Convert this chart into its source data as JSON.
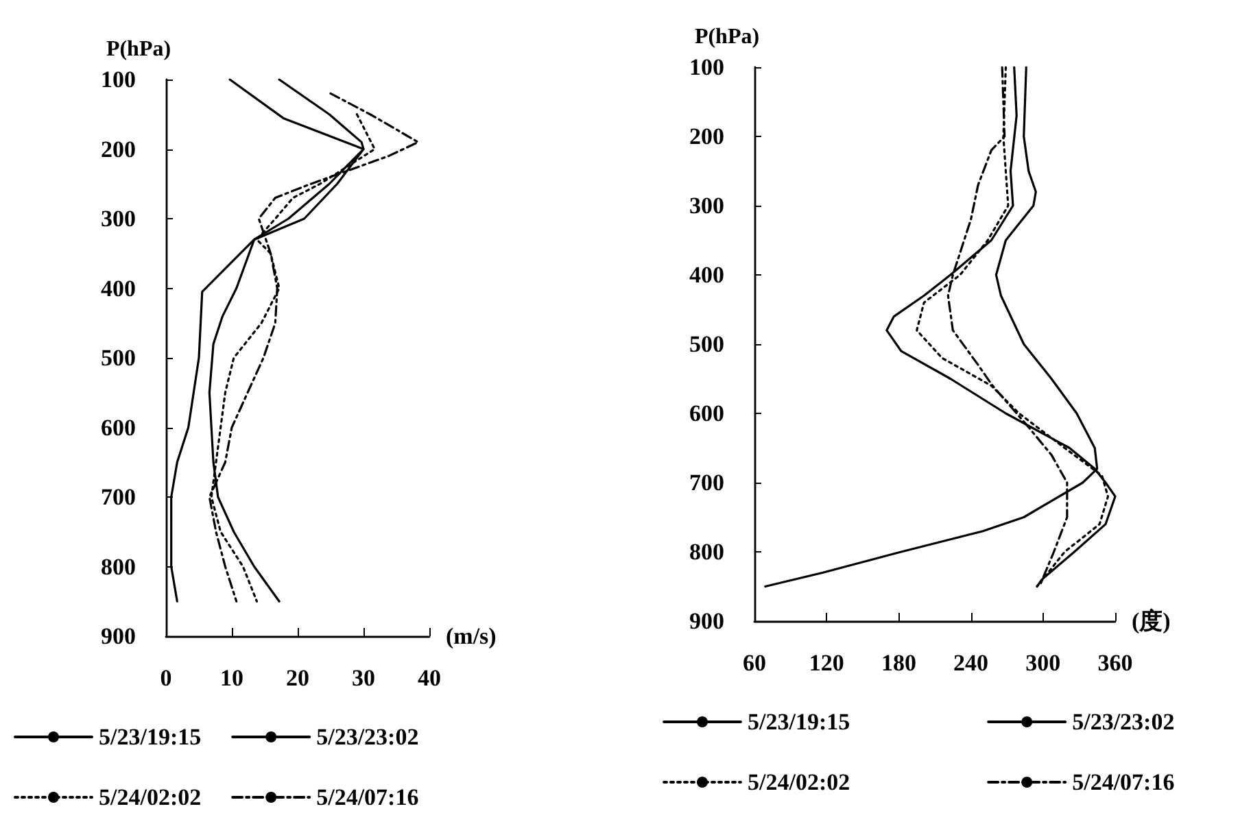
{
  "chart_data": [
    {
      "type": "line",
      "xlabel": "(m/s)",
      "ylabel": "P(hPa)",
      "xlim": [
        0,
        40
      ],
      "xticks": [
        0,
        10,
        20,
        30,
        40
      ],
      "ylim": [
        900,
        100
      ],
      "yticks": [
        100,
        200,
        300,
        400,
        500,
        600,
        700,
        800,
        900
      ],
      "grid": false,
      "legend": "bottom",
      "marker": "none",
      "series": [
        {
          "name": "5/23/19:15",
          "color": "#000000",
          "line_style": "solid",
          "x": [
            9.7,
            17.9,
            30,
            26,
            21,
            13.4,
            5.5,
            5,
            3.4,
            1.7,
            0.8,
            0.8,
            1.7
          ],
          "values": [
            100,
            156,
            200,
            250,
            300,
            330,
            405,
            500,
            600,
            650,
            700,
            800,
            850
          ]
        },
        {
          "name": "5/23/23:02",
          "color": "#000000",
          "line_style": "solid",
          "x": [
            17.2,
            24.8,
            29.7,
            30,
            24.8,
            18.6,
            13.4,
            10.7,
            8.6,
            7.2,
            6.6,
            7.2,
            7.9,
            10.3,
            13.4,
            17.2
          ],
          "values": [
            100,
            150,
            190,
            200,
            250,
            300,
            330,
            400,
            440,
            480,
            550,
            650,
            700,
            750,
            800,
            850
          ]
        },
        {
          "name": "5/24/02:02",
          "color": "#000000",
          "line_style": "dotted",
          "x": [
            29,
            31.7,
            23.4,
            19.3,
            16.6,
            13.8,
            15.9,
            17.2,
            14.5,
            10.3,
            9,
            8.3,
            7.6,
            6.9,
            8.3,
            11.7,
            13.8
          ],
          "values": [
            150,
            200,
            250,
            270,
            300,
            330,
            350,
            400,
            450,
            500,
            550,
            600,
            650,
            700,
            750,
            800,
            850
          ]
        },
        {
          "name": "5/24/07:16",
          "color": "#000000",
          "line_style": "dashed",
          "x": [
            25,
            31,
            38.3,
            33.8,
            22,
            16.6,
            14.1,
            15.9,
            16.9,
            16.6,
            14.8,
            12.4,
            10,
            9,
            6.6,
            7.6,
            9,
            10.7
          ],
          "values": [
            120,
            150,
            190,
            210,
            250,
            270,
            300,
            350,
            400,
            450,
            500,
            550,
            600,
            650,
            700,
            750,
            800,
            850
          ]
        }
      ]
    },
    {
      "type": "line",
      "xlabel": "(度)",
      "ylabel": "P(hPa)",
      "xlim": [
        60,
        360
      ],
      "xticks": [
        60,
        120,
        180,
        240,
        300,
        360
      ],
      "ylim": [
        900,
        100
      ],
      "yticks": [
        100,
        200,
        300,
        400,
        500,
        600,
        700,
        800,
        900
      ],
      "grid": false,
      "legend": "bottom",
      "marker": "none",
      "series": [
        {
          "name": "5/23/19:15",
          "color": "#000000",
          "line_style": "solid",
          "x": [
            286,
            284,
            288,
            294,
            292,
            269,
            261,
            265,
            284,
            307,
            328,
            343,
            345,
            333,
            284,
            250,
            182,
            117,
            69
          ],
          "values": [
            100,
            200,
            250,
            280,
            300,
            350,
            400,
            430,
            500,
            550,
            600,
            650,
            680,
            700,
            750,
            770,
            800,
            830,
            850
          ]
        },
        {
          "name": "5/23/23:02",
          "color": "#000000",
          "line_style": "solid",
          "x": [
            276,
            278,
            273,
            275,
            257,
            223,
            201,
            176,
            170,
            182,
            223,
            269,
            322,
            343,
            352,
            360,
            352,
            326,
            299,
            295
          ],
          "values": [
            100,
            170,
            250,
            300,
            350,
            400,
            430,
            460,
            480,
            510,
            550,
            600,
            650,
            680,
            700,
            720,
            760,
            800,
            840,
            850
          ]
        },
        {
          "name": "5/24/02:02",
          "color": "#000000",
          "line_style": "dotted",
          "x": [
            269,
            267,
            271,
            254,
            231,
            201,
            195,
            216,
            257,
            280,
            318,
            349,
            354,
            347,
            318,
            295
          ],
          "values": [
            100,
            200,
            300,
            350,
            400,
            440,
            480,
            520,
            560,
            600,
            650,
            690,
            720,
            760,
            800,
            850
          ]
        },
        {
          "name": "5/24/07:16",
          "color": "#000000",
          "line_style": "dashed",
          "x": [
            266,
            268,
            257,
            246,
            240,
            225,
            221,
            225,
            246,
            258,
            288,
            307,
            320,
            320,
            309,
            297
          ],
          "values": [
            100,
            200,
            220,
            270,
            320,
            400,
            430,
            480,
            530,
            560,
            620,
            660,
            700,
            750,
            800,
            850
          ]
        }
      ]
    }
  ]
}
